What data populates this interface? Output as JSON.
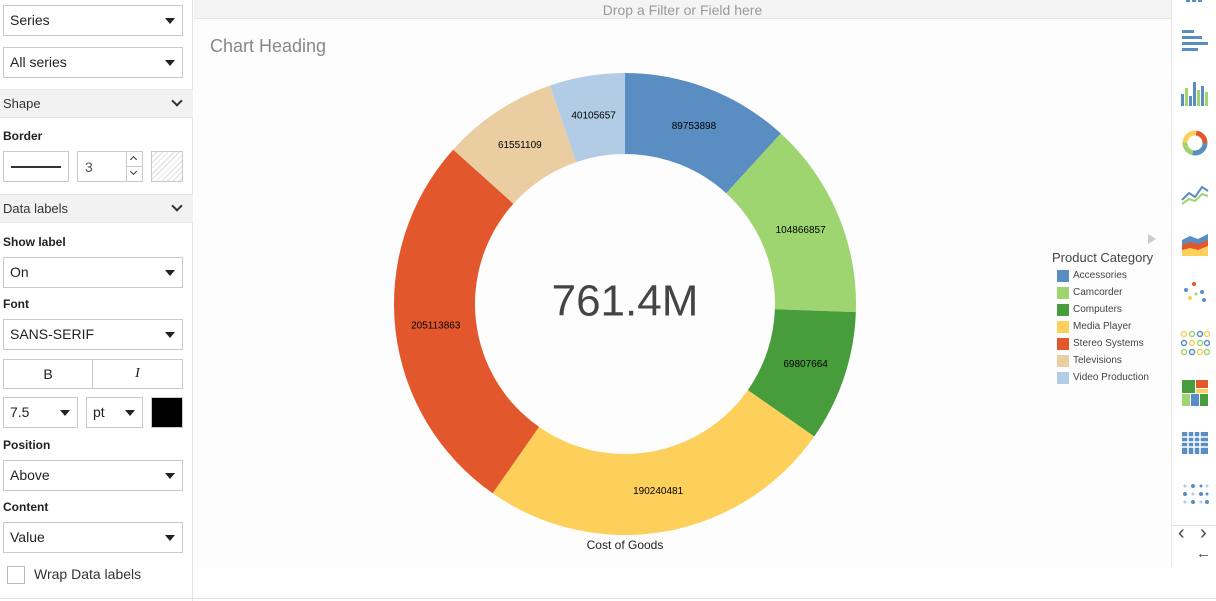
{
  "left_panel": {
    "series_select": "Series",
    "series_filter_select": "All series",
    "shape_section": "Shape",
    "border_label": "Border",
    "border_width": "3",
    "data_labels_section": "Data labels",
    "show_label_label": "Show label",
    "show_label_value": "On",
    "font_label": "Font",
    "font_value": "SANS-SERIF",
    "bold_label": "B",
    "italic_label": "I",
    "font_size": "7.5",
    "font_unit": "pt",
    "font_color": "#000000",
    "position_label": "Position",
    "position_value": "Above",
    "content_label": "Content",
    "content_value": "Value",
    "wrap_label": "Wrap Data labels"
  },
  "drop_bar": {
    "text": "Drop a Filter or Field here"
  },
  "chart": {
    "heading": "Chart Heading",
    "center_total": "761.4M",
    "measure_label": "Cost of Goods"
  },
  "chart_data": {
    "type": "pie",
    "variant": "donut",
    "title": "Chart Heading",
    "center_label": "761.4M",
    "xlabel": "Cost of Goods",
    "legend_title": "Product Category",
    "legend_position": "right",
    "categories": [
      "Accessories",
      "Camcorder",
      "Computers",
      "Media Player",
      "Stereo Systems",
      "Televisions",
      "Video Production"
    ],
    "values": [
      89753898,
      104866857,
      69807664,
      190240481,
      205113863,
      61551109,
      40105657
    ],
    "colors": [
      "#5a8ec2",
      "#9ed570",
      "#479c3b",
      "#fdcf5b",
      "#e3572c",
      "#ebcda2",
      "#b1cce4"
    ],
    "value_labels": [
      "89753898",
      "104866857",
      "69807664",
      "190240481",
      "205113863",
      "61551109",
      "40105657"
    ]
  },
  "toolbar": {
    "icons": [
      "vertical-bar-chart-icon",
      "horizontal-bar-chart-icon",
      "grouped-bar-chart-icon",
      "donut-chart-icon",
      "line-chart-icon",
      "area-chart-icon",
      "scatter-chart-icon",
      "matrix-chart-icon",
      "treemap-icon",
      "grid-table-icon",
      "bubble-grid-icon"
    ],
    "prev_label": "‹",
    "next_label": "›",
    "collapse_label": "←"
  }
}
